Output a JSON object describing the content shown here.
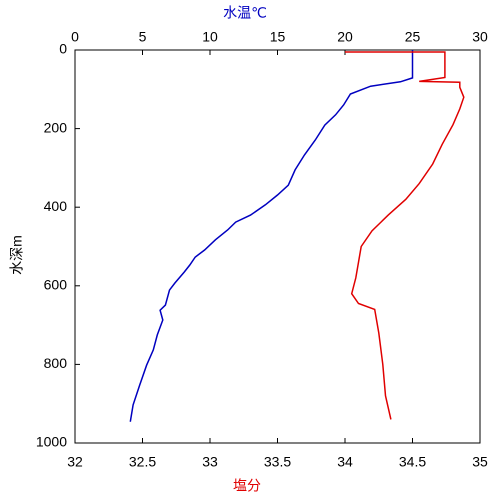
{
  "chart_data": {
    "type": "line",
    "x_label": "水温℃",
    "x2_label": "塩分",
    "y_label": "水深m",
    "xlim": [
      0,
      30
    ],
    "xticks": [
      0,
      5,
      10,
      15,
      20,
      25,
      30
    ],
    "x2lim": [
      32,
      35
    ],
    "x2ticks": [
      32,
      32.5,
      33,
      33.5,
      34,
      34.5,
      35
    ],
    "ylim": [
      0,
      1000
    ],
    "yticks": [
      0,
      200,
      400,
      600,
      800,
      1000
    ],
    "y_inverted": true,
    "series": [
      {
        "name": "水温℃",
        "color": "#0000c0",
        "axis": "x",
        "depth": [
          0,
          71,
          81,
          92,
          112,
          140,
          165,
          191,
          229,
          267,
          305,
          344,
          369,
          394,
          420,
          438,
          458,
          483,
          509,
          527,
          547,
          565,
          593,
          611,
          649,
          662,
          687,
          725,
          763,
          802,
          852,
          903,
          946
        ],
        "values": [
          25,
          25,
          24.1,
          21.9,
          20.4,
          19.9,
          19.3,
          18.5,
          17.8,
          17.0,
          16.3,
          15.8,
          15.0,
          14.1,
          13.0,
          11.9,
          11.3,
          10.4,
          9.6,
          8.9,
          8.5,
          8.1,
          7.4,
          7.0,
          6.7,
          6.3,
          6.5,
          6.1,
          5.8,
          5.3,
          4.8,
          4.3,
          4.1
        ]
      },
      {
        "name": "塩分",
        "color": "#e00000",
        "axis": "x2",
        "depth": [
          5,
          5,
          70,
          80,
          82,
          95,
          120,
          150,
          190,
          240,
          290,
          340,
          380,
          420,
          460,
          500,
          540,
          580,
          620,
          645,
          660,
          720,
          800,
          880,
          940
        ],
        "values": [
          34.0,
          34.74,
          34.74,
          34.55,
          34.85,
          34.85,
          34.88,
          34.85,
          34.8,
          34.72,
          34.65,
          34.55,
          34.45,
          34.32,
          34.2,
          34.12,
          34.1,
          34.08,
          34.05,
          34.1,
          34.22,
          34.25,
          34.28,
          34.3,
          34.34
        ]
      }
    ]
  }
}
